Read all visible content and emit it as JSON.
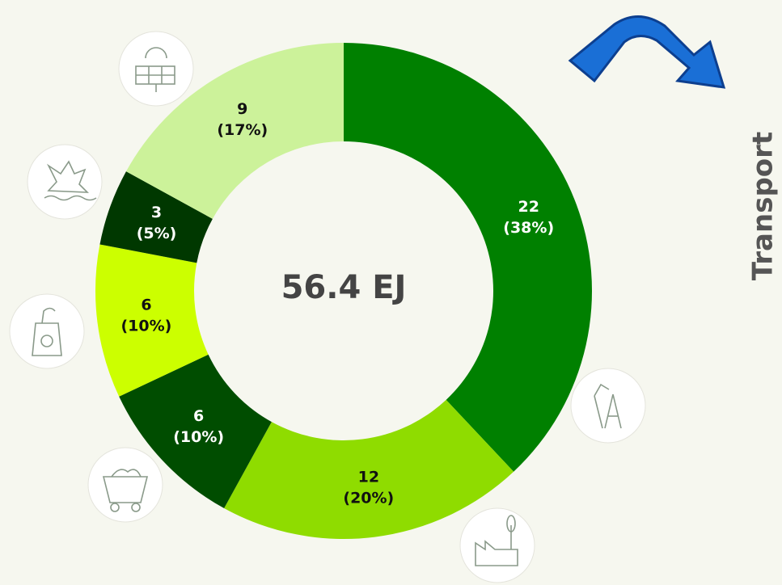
{
  "chart_data": {
    "type": "donut",
    "center_label": "56.4 EJ",
    "side_label": "Transport",
    "values": [
      22,
      12,
      6,
      6,
      3,
      9
    ],
    "percents": [
      38,
      20,
      10,
      10,
      5,
      17
    ],
    "percent_labels": [
      "(38%)",
      "(20%)",
      "(10%)",
      "(10%)",
      "(5%)",
      "(17%)"
    ],
    "colors": [
      "#008000",
      "#8fdc00",
      "#004d00",
      "#ccff00",
      "#003800",
      "#ccf29a"
    ]
  }
}
